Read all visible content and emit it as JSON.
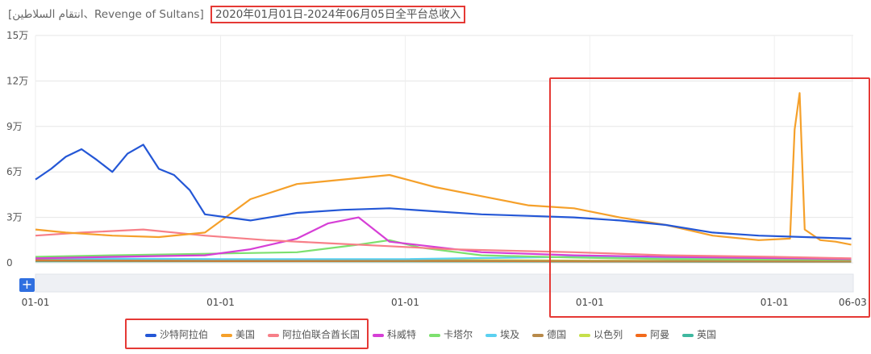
{
  "title": {
    "app": "[انتقام السلاطين、Revenge of Sultans]",
    "range": "2020年01月01日-2024年06月05日全平台总收入"
  },
  "zoom_button": "+",
  "chart_data": {
    "type": "line",
    "title": "2020年01月01日-2024年06月05日全平台总收入",
    "ylim": [
      0,
      150000
    ],
    "yticks": [
      0,
      30000,
      60000,
      90000,
      120000,
      150000
    ],
    "ytick_labels": [
      "0",
      "3万",
      "6万",
      "9万",
      "12万",
      "15万"
    ],
    "xlim": [
      "2020-01-01",
      "2024-06-05"
    ],
    "xticks": [
      "2020-01-01",
      "2021-01-01",
      "2022-01-01",
      "2023-01-01",
      "2024-01-01",
      "2024-06-03"
    ],
    "xtick_labels": [
      "01-01",
      "01-01",
      "01-01",
      "01-01",
      "01-01",
      "06-03"
    ],
    "grid": true,
    "legend": "bottom",
    "series": [
      {
        "name": "沙特阿拉伯",
        "color": "#2457d6",
        "x": [
          "2020-01-01",
          "2020-02-01",
          "2020-03-01",
          "2020-04-01",
          "2020-05-01",
          "2020-06-01",
          "2020-07-01",
          "2020-08-01",
          "2020-09-01",
          "2020-10-01",
          "2020-11-01",
          "2020-12-01",
          "2021-03-01",
          "2021-06-01",
          "2021-09-01",
          "2021-12-01",
          "2022-03-01",
          "2022-06-01",
          "2022-09-01",
          "2022-12-01",
          "2023-03-01",
          "2023-06-01",
          "2023-09-01",
          "2023-12-01",
          "2024-03-01",
          "2024-06-01"
        ],
        "values": [
          55000,
          62000,
          70000,
          75000,
          68000,
          60000,
          72000,
          78000,
          62000,
          58000,
          48000,
          32000,
          28000,
          33000,
          35000,
          36000,
          34000,
          32000,
          31000,
          30000,
          28000,
          25000,
          20000,
          18000,
          17000,
          16000
        ]
      },
      {
        "name": "美国",
        "color": "#f5a02a",
        "x": [
          "2020-01-01",
          "2020-03-01",
          "2020-06-01",
          "2020-09-01",
          "2020-12-01",
          "2021-03-01",
          "2021-06-01",
          "2021-09-01",
          "2021-12-01",
          "2022-03-01",
          "2022-06-01",
          "2022-09-01",
          "2022-12-01",
          "2023-03-01",
          "2023-06-01",
          "2023-09-01",
          "2023-12-01",
          "2024-02-01",
          "2024-02-10",
          "2024-02-20",
          "2024-03-01",
          "2024-04-01",
          "2024-05-01",
          "2024-06-01"
        ],
        "values": [
          22000,
          20000,
          18000,
          17000,
          20000,
          42000,
          52000,
          55000,
          58000,
          50000,
          44000,
          38000,
          36000,
          30000,
          25000,
          18000,
          15000,
          16000,
          88000,
          112000,
          22000,
          15000,
          14000,
          12000
        ]
      },
      {
        "name": "阿拉伯联合酋长国",
        "color": "#f77f88",
        "x": [
          "2020-01-01",
          "2020-04-01",
          "2020-08-01",
          "2020-12-01",
          "2021-04-01",
          "2021-08-01",
          "2021-12-01",
          "2022-04-01",
          "2022-08-01",
          "2022-12-01",
          "2023-06-01",
          "2024-01-01",
          "2024-06-01"
        ],
        "values": [
          18000,
          20000,
          22000,
          18000,
          15000,
          13000,
          11000,
          9000,
          8000,
          7000,
          5000,
          4000,
          3000
        ]
      },
      {
        "name": "科威特",
        "color": "#d63fd6",
        "x": [
          "2020-01-01",
          "2020-06-01",
          "2020-12-01",
          "2021-03-01",
          "2021-06-01",
          "2021-08-01",
          "2021-10-01",
          "2021-12-01",
          "2022-06-01",
          "2022-12-01",
          "2023-06-01",
          "2024-06-01"
        ],
        "values": [
          3000,
          4000,
          5000,
          9000,
          16000,
          26000,
          30000,
          14000,
          7000,
          5000,
          4000,
          2500
        ]
      },
      {
        "name": "卡塔尔",
        "color": "#7de06e",
        "x": [
          "2020-01-01",
          "2020-06-01",
          "2020-12-01",
          "2021-06-01",
          "2021-10-01",
          "2021-12-01",
          "2022-02-01",
          "2022-06-01",
          "2022-12-01",
          "2023-06-01",
          "2024-06-01"
        ],
        "values": [
          4000,
          5000,
          6000,
          7000,
          12000,
          15000,
          10000,
          5000,
          3500,
          2500,
          2000
        ]
      },
      {
        "name": "埃及",
        "color": "#5bd0f0",
        "x": [
          "2020-01-01",
          "2021-01-01",
          "2022-01-01",
          "2022-12-01",
          "2023-06-01",
          "2024-01-01",
          "2024-06-01"
        ],
        "values": [
          3000,
          2500,
          2500,
          4000,
          3500,
          3000,
          2500
        ]
      },
      {
        "name": "德国",
        "color": "#b88a4a",
        "x": [
          "2020-01-01",
          "2021-01-01",
          "2022-01-01",
          "2023-01-01",
          "2024-06-01"
        ],
        "values": [
          2000,
          1800,
          1500,
          1200,
          1000
        ]
      },
      {
        "name": "以色列",
        "color": "#c6e04a",
        "x": [
          "2020-01-01",
          "2021-01-01",
          "2022-01-01",
          "2023-01-01",
          "2024-06-01"
        ],
        "values": [
          2500,
          2200,
          2000,
          1500,
          1200
        ]
      },
      {
        "name": "阿曼",
        "color": "#f26a1b",
        "x": [
          "2020-01-01",
          "2021-01-01",
          "2022-01-01",
          "2023-01-01",
          "2024-06-01"
        ],
        "values": [
          1500,
          1300,
          1200,
          1000,
          900
        ]
      },
      {
        "name": "英国",
        "color": "#3fb8a0",
        "x": [
          "2020-01-01",
          "2021-01-01",
          "2022-01-01",
          "2023-01-01",
          "2024-06-01"
        ],
        "values": [
          1000,
          1000,
          900,
          800,
          700
        ]
      }
    ]
  }
}
